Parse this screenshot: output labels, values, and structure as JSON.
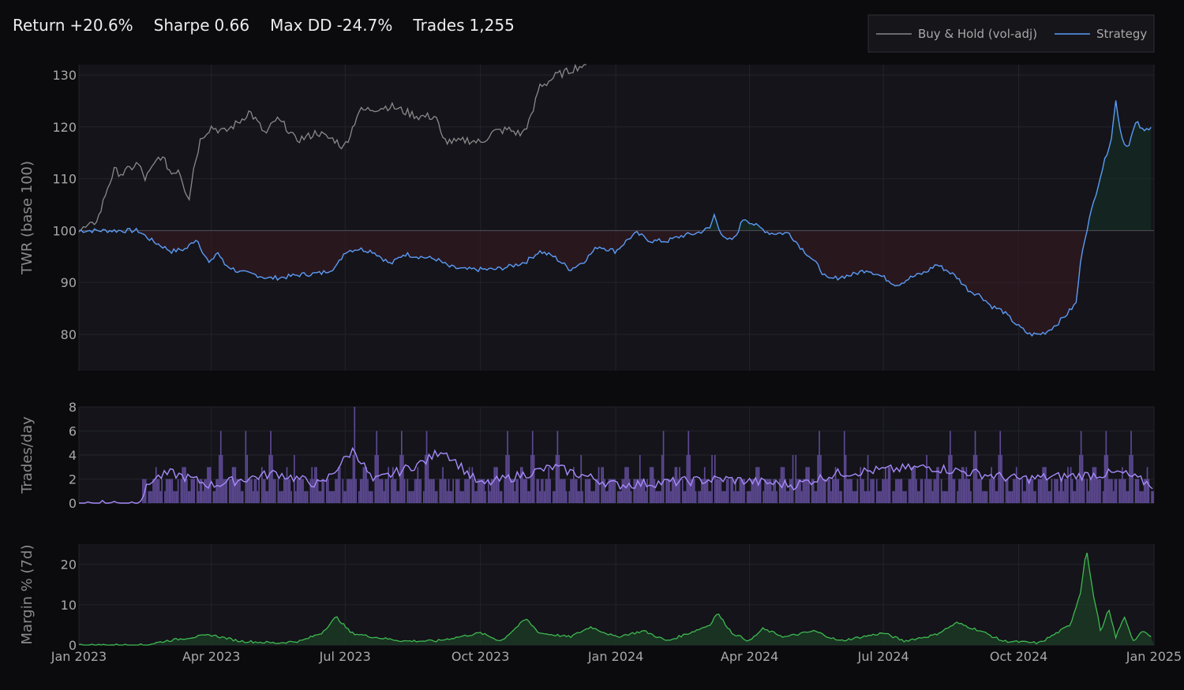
{
  "stats": [
    {
      "label": "Return",
      "value": "+20.6%"
    },
    {
      "label": "Sharpe",
      "value": "0.66"
    },
    {
      "label": "Max DD",
      "value": "-24.7%"
    },
    {
      "label": "Trades",
      "value": "1,255"
    }
  ],
  "legend": [
    {
      "name": "Buy & Hold (vol-adj)",
      "color": "#8a8a8a"
    },
    {
      "name": "Strategy",
      "color": "#5b9bf5"
    }
  ],
  "x_ticks": [
    "Jan 2023",
    "Apr 2023",
    "Jul 2023",
    "Oct 2023",
    "Jan 2024",
    "Apr 2024",
    "Jul 2024",
    "Oct 2024",
    "Jan 2025"
  ],
  "chart_data": [
    {
      "type": "line",
      "ylabel": "TWR (base 100)",
      "ylim": [
        73,
        132
      ],
      "yticks": [
        80,
        90,
        100,
        110,
        120,
        130
      ],
      "xlim": [
        "2023-01-01",
        "2025-01-01"
      ],
      "reference_line": 100,
      "series": [
        {
          "name": "Buy & Hold (vol-adj)",
          "color": "#8a8a8a",
          "points": [
            [
              "2023-01-01",
              100
            ],
            [
              "2023-01-10",
              101
            ],
            [
              "2023-01-15",
              103
            ],
            [
              "2023-01-20",
              108
            ],
            [
              "2023-01-25",
              111.5
            ],
            [
              "2023-01-31",
              111
            ],
            [
              "2023-02-05",
              112
            ],
            [
              "2023-02-10",
              113
            ],
            [
              "2023-02-15",
              110
            ],
            [
              "2023-02-20",
              112
            ],
            [
              "2023-02-25",
              114.5
            ],
            [
              "2023-03-01",
              113
            ],
            [
              "2023-03-05",
              111
            ],
            [
              "2023-03-10",
              112
            ],
            [
              "2023-03-14",
              108
            ],
            [
              "2023-03-17",
              106.5
            ],
            [
              "2023-03-20",
              112
            ],
            [
              "2023-03-25",
              118
            ],
            [
              "2023-04-01",
              120
            ],
            [
              "2023-04-10",
              119
            ],
            [
              "2023-04-20",
              121
            ],
            [
              "2023-04-27",
              123
            ],
            [
              "2023-05-02",
              121
            ],
            [
              "2023-05-08",
              118.5
            ],
            [
              "2023-05-15",
              121.5
            ],
            [
              "2023-05-22",
              120
            ],
            [
              "2023-05-28",
              117.5
            ],
            [
              "2023-06-05",
              118
            ],
            [
              "2023-06-12",
              119
            ],
            [
              "2023-06-18",
              118
            ],
            [
              "2023-06-24",
              117.5
            ],
            [
              "2023-06-30",
              116
            ],
            [
              "2023-07-05",
              119
            ],
            [
              "2023-07-10",
              123
            ],
            [
              "2023-07-20",
              123.5
            ],
            [
              "2023-08-01",
              124
            ],
            [
              "2023-08-10",
              123
            ],
            [
              "2023-08-20",
              122
            ],
            [
              "2023-09-01",
              122
            ],
            [
              "2023-09-05",
              117.5
            ],
            [
              "2023-09-15",
              117
            ],
            [
              "2023-09-22",
              117.5
            ],
            [
              "2023-10-01",
              117
            ],
            [
              "2023-10-10",
              119
            ],
            [
              "2023-10-20",
              119.5
            ],
            [
              "2023-10-29",
              118.5
            ],
            [
              "2023-11-05",
              122
            ],
            [
              "2023-11-10",
              128
            ],
            [
              "2023-11-15",
              128.5
            ],
            [
              "2023-11-22",
              130
            ],
            [
              "2023-11-28",
              130.5
            ],
            [
              "2023-12-05",
              131.5
            ],
            [
              "2023-12-12",
              132
            ]
          ]
        },
        {
          "name": "Strategy",
          "color": "#5b9bf5",
          "points": [
            [
              "2023-01-01",
              100
            ],
            [
              "2023-02-01",
              100
            ],
            [
              "2023-02-10",
              100
            ],
            [
              "2023-02-20",
              98
            ],
            [
              "2023-03-05",
              96
            ],
            [
              "2023-03-15",
              96.5
            ],
            [
              "2023-03-22",
              98.5
            ],
            [
              "2023-03-27",
              95.5
            ],
            [
              "2023-03-31",
              93.5
            ],
            [
              "2023-04-05",
              96
            ],
            [
              "2023-04-10",
              93.5
            ],
            [
              "2023-04-20",
              92
            ],
            [
              "2023-05-01",
              91.5
            ],
            [
              "2023-05-10",
              90.8
            ],
            [
              "2023-05-20",
              91
            ],
            [
              "2023-06-01",
              91.5
            ],
            [
              "2023-06-15",
              91.8
            ],
            [
              "2023-06-25",
              93
            ],
            [
              "2023-07-01",
              96
            ],
            [
              "2023-07-10",
              96.5
            ],
            [
              "2023-07-20",
              96
            ],
            [
              "2023-08-01",
              93.5
            ],
            [
              "2023-08-10",
              95.5
            ],
            [
              "2023-08-20",
              95
            ],
            [
              "2023-09-01",
              94.5
            ],
            [
              "2023-09-10",
              93
            ],
            [
              "2023-09-20",
              92.5
            ],
            [
              "2023-10-01",
              92.5
            ],
            [
              "2023-10-10",
              92.5
            ],
            [
              "2023-10-20",
              93
            ],
            [
              "2023-11-01",
              94
            ],
            [
              "2023-11-10",
              96
            ],
            [
              "2023-11-20",
              95
            ],
            [
              "2023-12-01",
              92.5
            ],
            [
              "2023-12-10",
              94
            ],
            [
              "2023-12-20",
              97
            ],
            [
              "2024-01-01",
              96
            ],
            [
              "2024-01-10",
              98.5
            ],
            [
              "2024-01-15",
              99.5
            ],
            [
              "2024-01-25",
              98
            ],
            [
              "2024-02-05",
              98
            ],
            [
              "2024-02-15",
              99
            ],
            [
              "2024-02-25",
              99.5
            ],
            [
              "2024-03-05",
              100.5
            ],
            [
              "2024-03-08",
              103
            ],
            [
              "2024-03-12",
              100
            ],
            [
              "2024-03-16",
              98
            ],
            [
              "2024-03-22",
              98.5
            ],
            [
              "2024-03-28",
              102.5
            ],
            [
              "2024-04-05",
              101
            ],
            [
              "2024-04-15",
              99.5
            ],
            [
              "2024-04-28",
              99.5
            ],
            [
              "2024-05-05",
              97
            ],
            [
              "2024-05-12",
              95
            ],
            [
              "2024-05-18",
              93
            ],
            [
              "2024-05-24",
              90.5
            ],
            [
              "2024-06-01",
              91
            ],
            [
              "2024-06-10",
              91.5
            ],
            [
              "2024-06-20",
              92.5
            ],
            [
              "2024-07-01",
              91
            ],
            [
              "2024-07-10",
              89.5
            ],
            [
              "2024-07-20",
              91
            ],
            [
              "2024-07-30",
              92
            ],
            [
              "2024-08-06",
              93.5
            ],
            [
              "2024-08-15",
              92
            ],
            [
              "2024-08-20",
              91
            ],
            [
              "2024-08-28",
              88.5
            ],
            [
              "2024-09-05",
              87.5
            ],
            [
              "2024-09-12",
              85.5
            ],
            [
              "2024-09-20",
              84.5
            ],
            [
              "2024-10-01",
              81.5
            ],
            [
              "2024-10-08",
              80
            ],
            [
              "2024-10-15",
              80
            ],
            [
              "2024-10-20",
              80.5
            ],
            [
              "2024-10-27",
              82
            ],
            [
              "2024-11-03",
              84
            ],
            [
              "2024-11-09",
              86
            ],
            [
              "2024-11-13",
              96
            ],
            [
              "2024-11-17",
              101
            ],
            [
              "2024-11-25",
              110
            ],
            [
              "2024-11-30",
              115
            ],
            [
              "2024-12-03",
              118
            ],
            [
              "2024-12-06",
              125
            ],
            [
              "2024-12-10",
              118
            ],
            [
              "2024-12-14",
              116
            ],
            [
              "2024-12-20",
              121
            ],
            [
              "2024-12-25",
              119
            ],
            [
              "2024-12-31",
              120.5
            ]
          ]
        }
      ]
    },
    {
      "type": "bar",
      "ylabel": "Trades/day",
      "ylim": [
        0,
        8
      ],
      "yticks": [
        0,
        2,
        4,
        6,
        8
      ],
      "xlim": [
        "2023-01-01",
        "2025-01-01"
      ],
      "series": [
        {
          "name": "daily",
          "color": "#6a52a8",
          "values_cycle": [
            2,
            1,
            2,
            3,
            2,
            1,
            2,
            2,
            4,
            1,
            2,
            3,
            1,
            2,
            2,
            6,
            1,
            2,
            3,
            2,
            1,
            2,
            4,
            2,
            1,
            3,
            2,
            2,
            1,
            2
          ],
          "start": "2023-02-13",
          "peak": [
            "2023-07-07",
            8
          ]
        },
        {
          "name": "average",
          "color": "#a78bfa",
          "points": [
            [
              "2023-01-01",
              0
            ],
            [
              "2023-02-10",
              0
            ],
            [
              "2023-02-20",
              2
            ],
            [
              "2023-03-05",
              2.5
            ],
            [
              "2023-04-01",
              1.5
            ],
            [
              "2023-05-15",
              2.5
            ],
            [
              "2023-06-15",
              1.5
            ],
            [
              "2023-07-07",
              4.5
            ],
            [
              "2023-07-20",
              1.8
            ],
            [
              "2023-08-25",
              3.5
            ],
            [
              "2023-09-05",
              4.5
            ],
            [
              "2023-10-01",
              1.5
            ],
            [
              "2023-11-20",
              3
            ],
            [
              "2024-01-01",
              1.5
            ],
            [
              "2024-03-15",
              2
            ],
            [
              "2024-05-01",
              1.5
            ],
            [
              "2024-06-01",
              2.5
            ],
            [
              "2024-08-01",
              3
            ],
            [
              "2024-10-01",
              2
            ],
            [
              "2024-12-10",
              2.5
            ],
            [
              "2024-12-31",
              1.5
            ]
          ]
        }
      ]
    },
    {
      "type": "area",
      "ylabel": "Margin % (7d)",
      "ylim": [
        0,
        25
      ],
      "yticks": [
        0,
        10,
        20
      ],
      "xlim": [
        "2023-01-01",
        "2025-01-01"
      ],
      "series": [
        {
          "name": "margin",
          "color": "#3fb950",
          "points": [
            [
              "2023-01-01",
              0
            ],
            [
              "2023-02-15",
              0
            ],
            [
              "2023-03-01",
              1
            ],
            [
              "2023-03-20",
              2
            ],
            [
              "2023-04-01",
              2.5
            ],
            [
              "2023-04-20",
              1
            ],
            [
              "2023-05-15",
              0.5
            ],
            [
              "2023-06-01",
              1
            ],
            [
              "2023-06-15",
              3
            ],
            [
              "2023-06-25",
              7
            ],
            [
              "2023-07-05",
              3
            ],
            [
              "2023-07-20",
              2
            ],
            [
              "2023-08-10",
              1
            ],
            [
              "2023-09-01",
              1
            ],
            [
              "2023-10-01",
              3
            ],
            [
              "2023-10-15",
              1
            ],
            [
              "2023-11-01",
              6.5
            ],
            [
              "2023-11-10",
              3
            ],
            [
              "2023-12-01",
              2
            ],
            [
              "2023-12-15",
              4.5
            ],
            [
              "2024-01-01",
              2
            ],
            [
              "2024-01-20",
              3.5
            ],
            [
              "2024-02-05",
              1
            ],
            [
              "2024-02-20",
              3
            ],
            [
              "2024-03-05",
              5
            ],
            [
              "2024-03-10",
              8
            ],
            [
              "2024-03-20",
              3
            ],
            [
              "2024-04-01",
              1
            ],
            [
              "2024-04-10",
              4
            ],
            [
              "2024-04-25",
              2
            ],
            [
              "2024-05-15",
              3.5
            ],
            [
              "2024-06-01",
              1
            ],
            [
              "2024-07-01",
              3
            ],
            [
              "2024-07-15",
              1
            ],
            [
              "2024-08-05",
              2.5
            ],
            [
              "2024-08-20",
              5.5
            ],
            [
              "2024-09-05",
              3.5
            ],
            [
              "2024-09-20",
              1
            ],
            [
              "2024-10-15",
              0.5
            ],
            [
              "2024-10-27",
              3
            ],
            [
              "2024-11-05",
              5
            ],
            [
              "2024-11-12",
              13
            ],
            [
              "2024-11-16",
              24
            ],
            [
              "2024-11-20",
              14
            ],
            [
              "2024-11-26",
              3
            ],
            [
              "2024-12-01",
              9
            ],
            [
              "2024-12-06",
              2
            ],
            [
              "2024-12-12",
              7
            ],
            [
              "2024-12-18",
              1
            ],
            [
              "2024-12-25",
              3.5
            ],
            [
              "2024-12-31",
              1.5
            ]
          ]
        }
      ]
    }
  ]
}
